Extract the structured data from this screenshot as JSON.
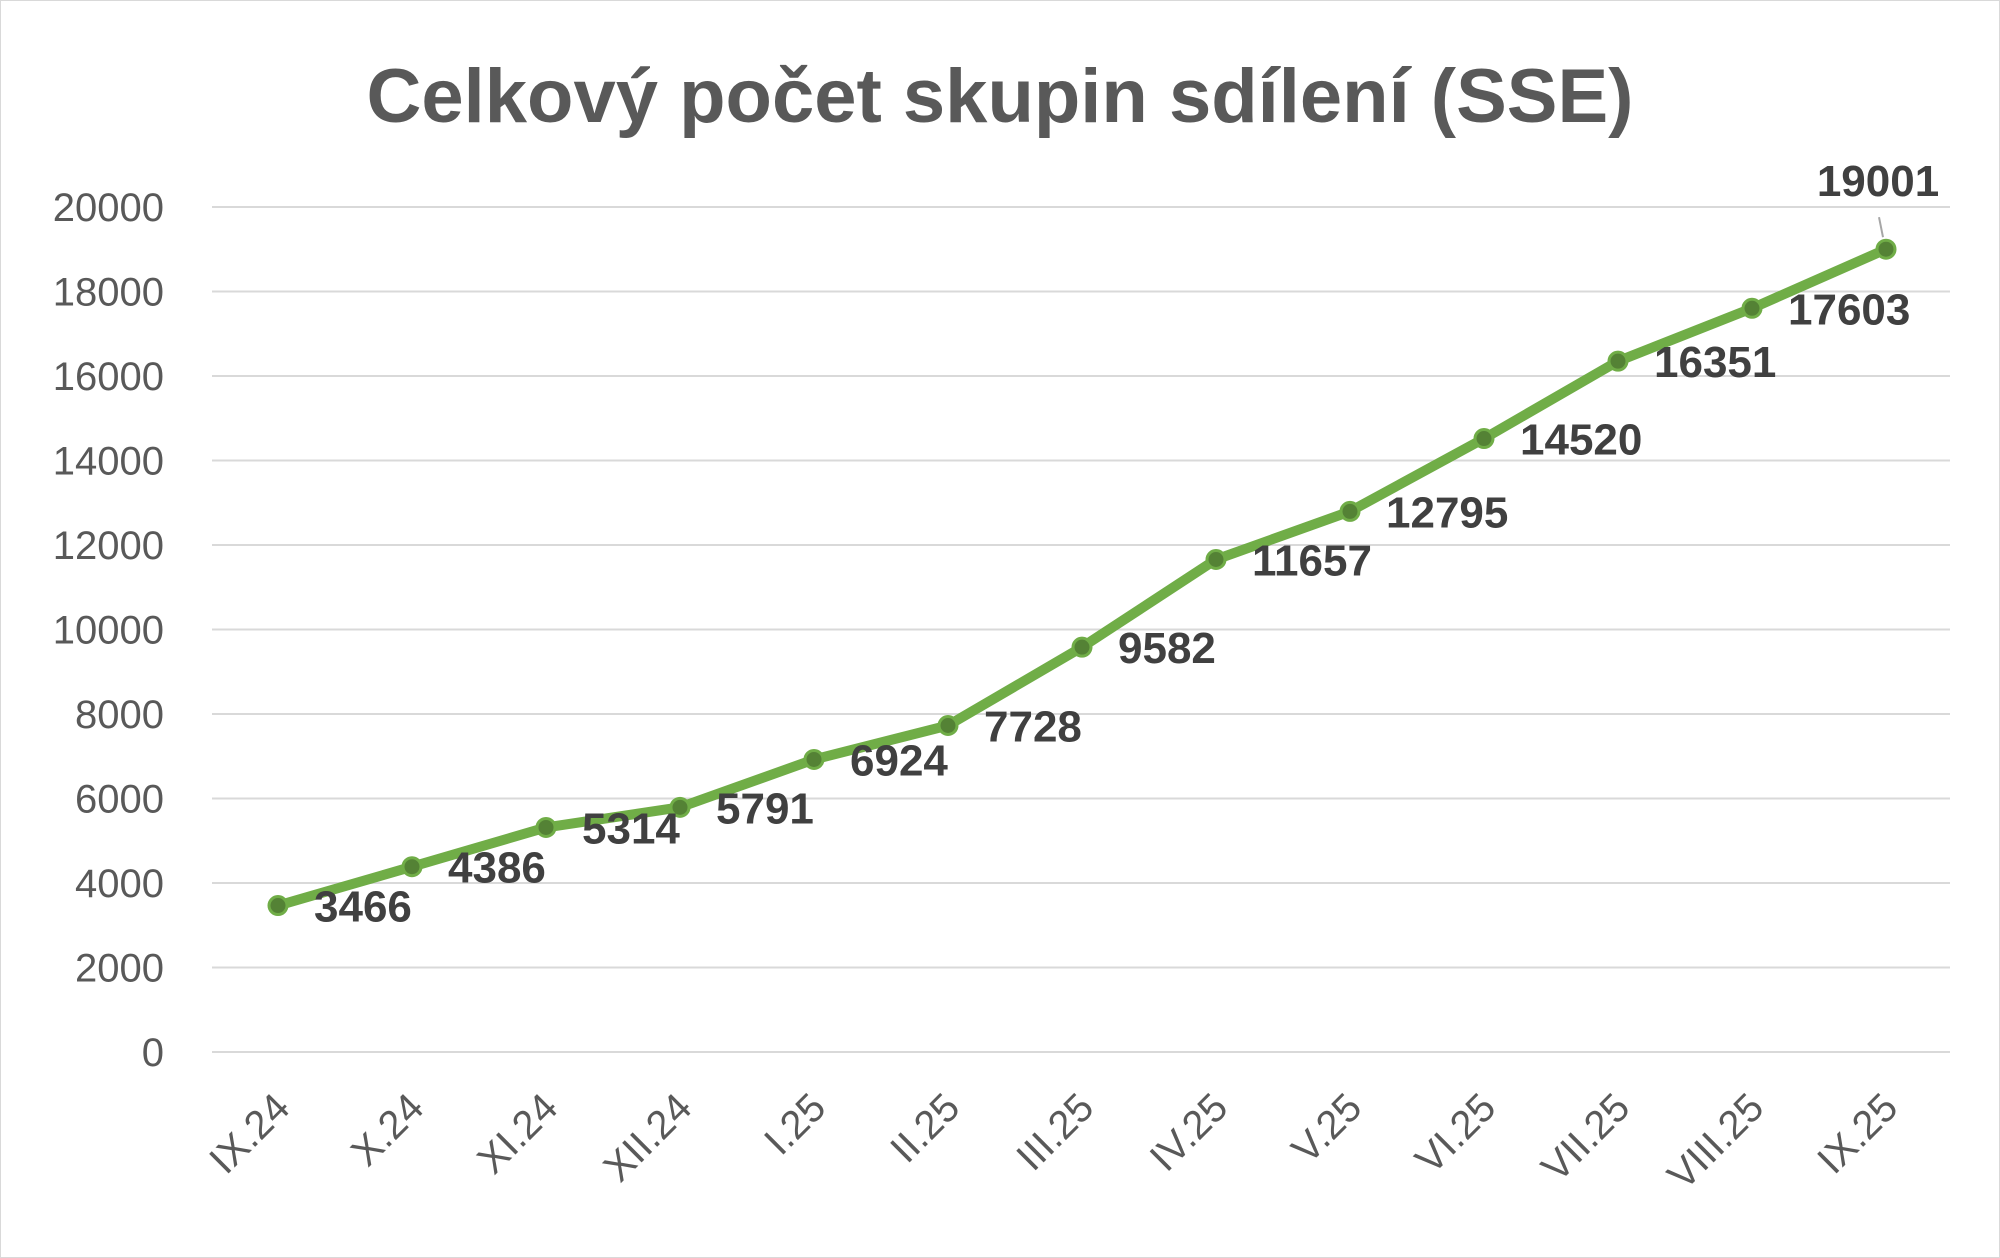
{
  "chart_data": {
    "type": "line",
    "title": "Celkový počet skupin sdílení (SSE)",
    "xlabel": "",
    "ylabel": "",
    "categories": [
      "IX.24",
      "X.24",
      "XI.24",
      "XII.24",
      "I.25",
      "II.25",
      "III.25",
      "IV.25",
      "V.25",
      "VI.25",
      "VII.25",
      "VIII.25",
      "IX.25"
    ],
    "series": [
      {
        "values": [
          3466,
          4386,
          5314,
          5791,
          6924,
          7728,
          9582,
          11657,
          12795,
          14520,
          16351,
          17603,
          19001
        ],
        "data_labels": [
          "3466",
          "4386",
          "5314",
          "5791",
          "6924",
          "7728",
          "9582",
          "11657",
          "12795",
          "14520",
          "16351",
          "17603",
          "19001"
        ],
        "color": "#70ad47",
        "marker_color": "#548235"
      }
    ],
    "ylim": [
      0,
      20000
    ],
    "yticks": [
      "0",
      "2000",
      "4000",
      "6000",
      "8000",
      "10000",
      "12000",
      "14000",
      "16000",
      "18000",
      "20000"
    ],
    "grid": true,
    "legend": "none"
  }
}
